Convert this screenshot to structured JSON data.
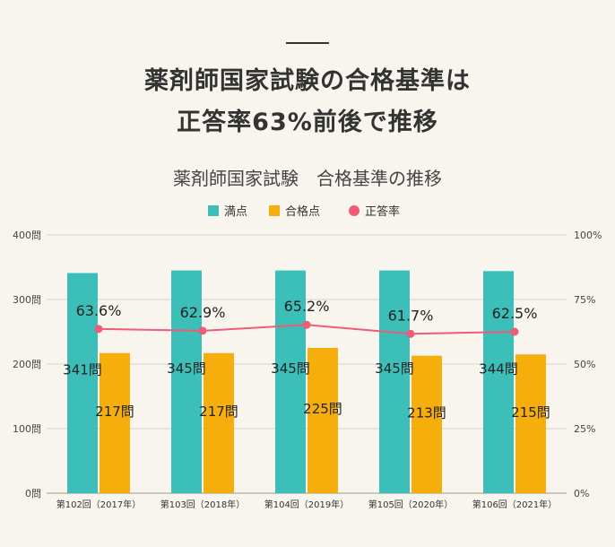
{
  "header": {
    "line1": "薬剤師国家試験の合格基準は",
    "line2": "正答率63%前後で推移"
  },
  "colors": {
    "full": "#3bbfb8",
    "pass": "#f6ae0c",
    "rate": "#ee5c78",
    "grid": "#d7d4cc"
  },
  "chart_data": {
    "type": "bar",
    "title": "薬剤師国家試験　合格基準の推移",
    "categories": [
      "第102回（2017年）",
      "第103回（2018年）",
      "第104回（2019年）",
      "第105回（2020年）",
      "第106回（2021年）"
    ],
    "series": [
      {
        "name": "満点",
        "axis": "left",
        "kind": "bar",
        "values": [
          341,
          345,
          345,
          345,
          344
        ],
        "labels": [
          "341問",
          "345問",
          "345問",
          "345問",
          "344問"
        ]
      },
      {
        "name": "合格点",
        "axis": "left",
        "kind": "bar",
        "values": [
          217,
          217,
          225,
          213,
          215
        ],
        "labels": [
          "217問",
          "217問",
          "225問",
          "213問",
          "215問"
        ]
      },
      {
        "name": "正答率",
        "axis": "right",
        "kind": "line",
        "values": [
          63.6,
          62.9,
          65.2,
          61.7,
          62.5
        ],
        "labels": [
          "63.6%",
          "62.9%",
          "65.2%",
          "61.7%",
          "62.5%"
        ]
      }
    ],
    "legend": [
      "満点",
      "合格点",
      "正答率"
    ],
    "y_left": {
      "range": [
        0,
        400
      ],
      "ticks": [
        "0問",
        "100問",
        "200問",
        "300問",
        "400問"
      ]
    },
    "y_right": {
      "range": [
        0,
        100
      ],
      "ticks": [
        "0%",
        "25%",
        "50%",
        "75%",
        "100%"
      ]
    },
    "grid": true,
    "legend_position": "top"
  }
}
